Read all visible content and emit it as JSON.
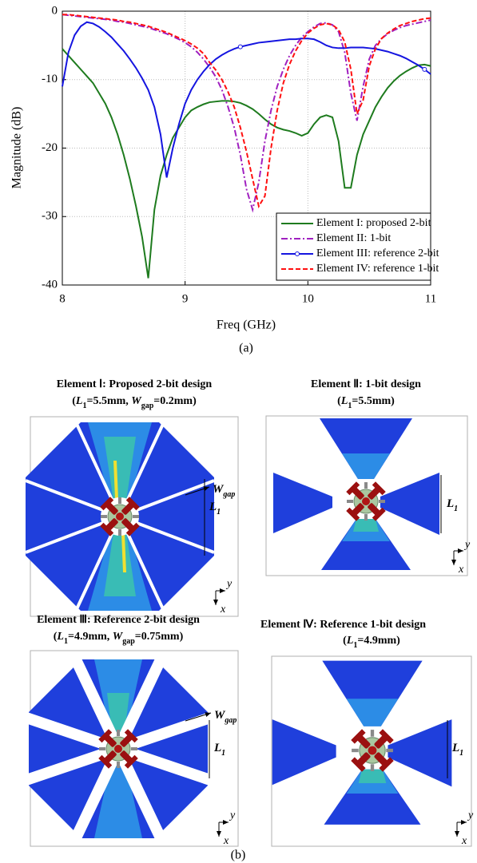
{
  "chart_data": {
    "type": "line",
    "xlabel": "Freq (GHz)",
    "ylabel": "Magnitude (dB)",
    "caption": "(a)",
    "x": [
      8.0,
      8.05,
      8.1,
      8.15,
      8.2,
      8.25,
      8.3,
      8.35,
      8.4,
      8.45,
      8.5,
      8.55,
      8.6,
      8.65,
      8.7,
      8.75,
      8.8,
      8.85,
      8.9,
      8.95,
      9.0,
      9.05,
      9.1,
      9.15,
      9.2,
      9.25,
      9.3,
      9.35,
      9.4,
      9.45,
      9.5,
      9.55,
      9.6,
      9.65,
      9.7,
      9.75,
      9.8,
      9.85,
      9.9,
      9.95,
      10.0,
      10.05,
      10.1,
      10.15,
      10.2,
      10.25,
      10.3,
      10.35,
      10.4,
      10.45,
      10.5,
      10.55,
      10.6,
      10.65,
      10.7,
      10.75,
      10.8,
      10.85,
      10.9,
      10.95,
      11.0
    ],
    "series": [
      {
        "name": "Element I: proposed 2-bit",
        "color": "#1e7b1e",
        "style": "solid",
        "values": [
          -5.5,
          -6.5,
          -7.5,
          -8.5,
          -9.5,
          -10.5,
          -12,
          -13.5,
          -15.5,
          -18,
          -21,
          -24.5,
          -28.5,
          -33,
          -39,
          -29,
          -24,
          -21,
          -18.5,
          -17,
          -15.5,
          -14.5,
          -14,
          -13.6,
          -13.3,
          -13.2,
          -13.1,
          -13.1,
          -13.2,
          -13.4,
          -13.8,
          -14.3,
          -15,
          -15.8,
          -16.5,
          -17,
          -17.3,
          -17.5,
          -17.8,
          -18.2,
          -17.8,
          -16.5,
          -15.5,
          -15.2,
          -15.5,
          -19,
          -25.8,
          -25.8,
          -21,
          -18,
          -16,
          -14,
          -12.5,
          -11.2,
          -10.2,
          -9.4,
          -8.8,
          -8.3,
          -7.9,
          -7.8,
          -8.0
        ]
      },
      {
        "name": "Element II: 1-bit",
        "color": "#a020c0",
        "style": "dashdot",
        "values": [
          -0.5,
          -0.6,
          -0.7,
          -0.8,
          -0.9,
          -1.0,
          -1.1,
          -1.2,
          -1.3,
          -1.5,
          -1.6,
          -1.8,
          -2.0,
          -2.2,
          -2.4,
          -2.7,
          -3.0,
          -3.3,
          -3.7,
          -4.1,
          -4.6,
          -5.2,
          -6.0,
          -7.0,
          -8.2,
          -9.6,
          -11.5,
          -14,
          -17,
          -21,
          -26,
          -29,
          -25,
          -19,
          -14.5,
          -11,
          -8.5,
          -6.5,
          -5.0,
          -3.8,
          -3.0,
          -2.3,
          -1.8,
          -1.7,
          -2.0,
          -3.0,
          -6,
          -12,
          -16,
          -11,
          -7,
          -5,
          -4,
          -3.3,
          -2.8,
          -2.4,
          -2.1,
          -1.9,
          -1.7,
          -1.5,
          -1.3
        ]
      },
      {
        "name": "Element III: reference 2-bit",
        "color": "#1515e0",
        "style": "solid",
        "marker": "circle",
        "values": [
          -11,
          -6,
          -3.5,
          -2.2,
          -1.6,
          -1.8,
          -2.3,
          -3.0,
          -3.8,
          -4.8,
          -5.8,
          -7.0,
          -8.3,
          -9.8,
          -11.5,
          -14,
          -18,
          -24.3,
          -20,
          -16.5,
          -13.5,
          -11.5,
          -10,
          -8.8,
          -7.8,
          -7.0,
          -6.4,
          -5.9,
          -5.5,
          -5.2,
          -5.0,
          -4.8,
          -4.6,
          -4.5,
          -4.4,
          -4.3,
          -4.2,
          -4.1,
          -4.1,
          -4.0,
          -4.0,
          -4.1,
          -4.5,
          -5.0,
          -5.3,
          -5.4,
          -5.4,
          -5.3,
          -5.3,
          -5.3,
          -5.4,
          -5.5,
          -5.7,
          -5.9,
          -6.2,
          -6.5,
          -6.9,
          -7.4,
          -7.9,
          -8.5,
          -9.2
        ]
      },
      {
        "name": "Element IV: reference 1-bit",
        "color": "#ff1010",
        "style": "dash",
        "values": [
          -0.5,
          -0.5,
          -0.6,
          -0.7,
          -0.8,
          -0.9,
          -1.0,
          -1.1,
          -1.2,
          -1.3,
          -1.5,
          -1.6,
          -1.8,
          -2.0,
          -2.2,
          -2.5,
          -2.8,
          -3.1,
          -3.5,
          -3.9,
          -4.3,
          -4.8,
          -5.4,
          -6.2,
          -7.5,
          -8.6,
          -10,
          -11.8,
          -14,
          -17,
          -20.5,
          -24.5,
          -28.5,
          -27,
          -20,
          -14.5,
          -10.5,
          -7.8,
          -5.8,
          -4.3,
          -3.2,
          -2.5,
          -2.0,
          -1.8,
          -2.0,
          -2.7,
          -4.5,
          -8.5,
          -15,
          -13,
          -8,
          -5.5,
          -4,
          -3.2,
          -2.6,
          -2.1,
          -1.8,
          -1.5,
          -1.3,
          -1.1,
          -1.0
        ]
      }
    ],
    "xlim": [
      8,
      11
    ],
    "xticks": [
      8,
      9,
      10,
      11
    ],
    "ylim": [
      -40,
      0
    ],
    "yticks": [
      -40,
      -30,
      -20,
      -10,
      0
    ],
    "grid": true,
    "legend": "lower right"
  },
  "panel_b": {
    "caption": "(b)",
    "elements": [
      {
        "title": "Element Ⅰ: Proposed 2-bit design",
        "params": [
          "(",
          "L",
          "1",
          "=5.5mm, ",
          "W",
          "gap",
          "=0.2mm)"
        ],
        "gap_label": [
          "W",
          "gap"
        ],
        "length_label": [
          "L",
          "1"
        ],
        "axes": [
          "y",
          "x"
        ]
      },
      {
        "title": "Element Ⅱ: 1-bit design",
        "params": [
          "(",
          "L",
          "1",
          "=5.5mm)"
        ],
        "length_label": [
          "L",
          "1"
        ],
        "axes": [
          "y",
          "x"
        ]
      },
      {
        "title": "Element Ⅲ: Reference 2-bit design",
        "params": [
          "(",
          "L",
          "1",
          "=4.9mm, ",
          "W",
          "gap",
          "=0.75mm)"
        ],
        "gap_label": [
          "W",
          "gap"
        ],
        "length_label": [
          "L",
          "1"
        ],
        "axes": [
          "y",
          "x"
        ]
      },
      {
        "title": "Element Ⅳ: Reference 1-bit design",
        "params": [
          "(",
          "L",
          "1",
          "=4.9mm)"
        ],
        "length_label": [
          "L",
          "1"
        ],
        "axes": [
          "y",
          "x"
        ]
      }
    ]
  }
}
